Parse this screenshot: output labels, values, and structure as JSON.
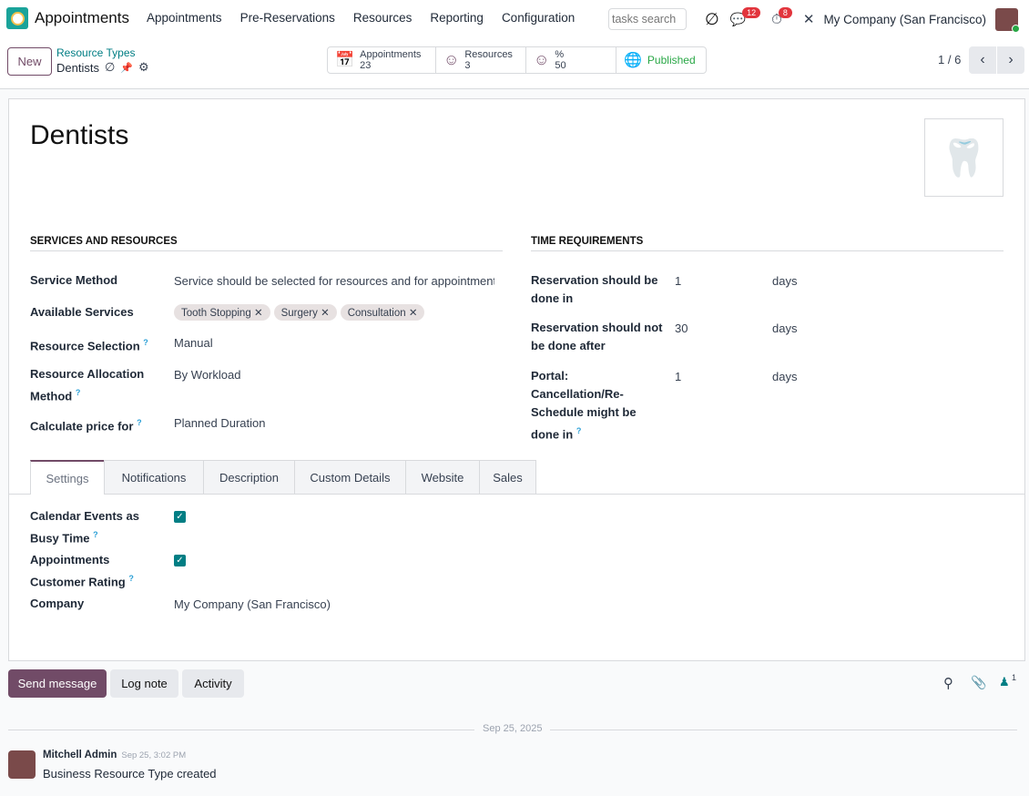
{
  "navbar": {
    "app_name": "Appointments",
    "menu": [
      "Appointments",
      "Pre-Reservations",
      "Resources",
      "Reporting",
      "Configuration"
    ],
    "search_placeholder": "tasks search",
    "messages_count": "12",
    "activities_count": "8",
    "company": "My Company (San Francisco)"
  },
  "control": {
    "new_label": "New",
    "breadcrumb_parent": "Resource Types",
    "breadcrumb_current": "Dentists",
    "stats": [
      {
        "label": "Appointments",
        "value": "23"
      },
      {
        "label": "Resources",
        "value": "3"
      },
      {
        "label": "%",
        "value": "50"
      }
    ],
    "published_label": "Published",
    "pager": "1 / 6"
  },
  "form": {
    "title": "Dentists",
    "services_section": "SERVICES AND RESOURCES",
    "time_section": "TIME REQUIREMENTS",
    "fields": [
      {
        "label": "Service Method",
        "value": "Service should be selected for resources and for appointments"
      },
      {
        "label": "Available Services",
        "tags": [
          "Tooth Stopping",
          "Surgery",
          "Consultation"
        ]
      },
      {
        "label": "Resource Selection",
        "value": "Manual"
      },
      {
        "label": "Resource Allocation Method",
        "value": "By Workload"
      },
      {
        "label": "Calculate price for",
        "value": "Planned Duration"
      }
    ],
    "time_fields": [
      {
        "label": "Reservation should be done in",
        "value": "1",
        "unit": "days"
      },
      {
        "label": "Reservation should not be done after",
        "value": "30",
        "unit": "days"
      },
      {
        "label": "Portal: Cancellation/Re-Schedule might be done in",
        "value": "1",
        "unit": "days"
      }
    ],
    "tabs": [
      "Settings",
      "Notifications",
      "Description",
      "Custom Details",
      "Website",
      "Sales"
    ],
    "active_tab": "Settings",
    "settings": [
      {
        "label": "Calendar Events as Busy Time",
        "checked": true
      },
      {
        "label": "Appointments Customer Rating",
        "checked": true
      },
      {
        "label": "Company",
        "value": "My Company (San Francisco)"
      }
    ]
  },
  "chatter": {
    "send_message": "Send message",
    "log_note": "Log note",
    "activity": "Activity",
    "followers_count": "1",
    "date_separator": "Sep 25, 2025",
    "messages": [
      {
        "author": "Mitchell Admin",
        "time": "Sep 25, 3:02 PM",
        "body": "Business Resource Type created"
      }
    ]
  },
  "colors": {
    "brand": "#714b67",
    "accent": "#017e84",
    "published": "#28a745",
    "badge": "#e2343c"
  }
}
